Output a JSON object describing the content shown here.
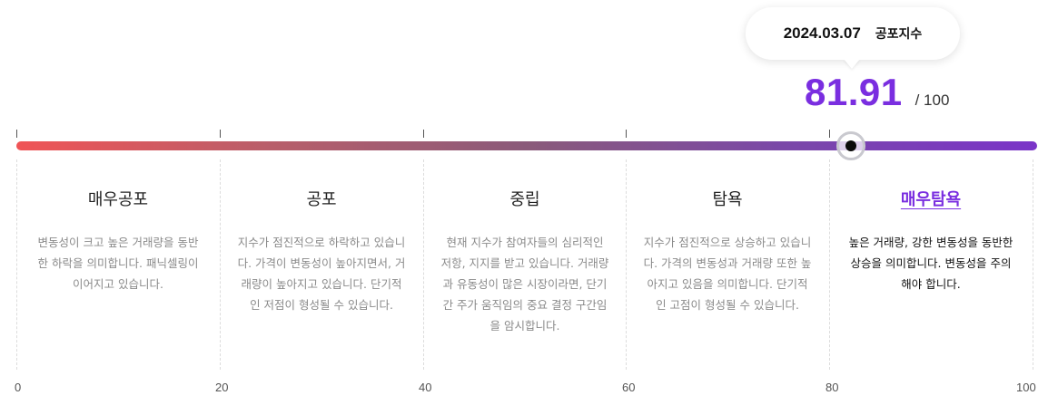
{
  "tooltip": {
    "date": "2024.03.07",
    "label": "공포지수"
  },
  "score": {
    "value": "81.91",
    "max": "/ 100",
    "fraction": 0.8191,
    "color": "#7a2ee0"
  },
  "gradient": {
    "start_color": "#f05456",
    "end_color": "#7a34c8"
  },
  "segments": [
    {
      "title": "매우공포",
      "description": "변동성이 크고 높은 거래량을 동반한 하락을 의미합니다. 패닉셀링이 이어지고 있습니다.",
      "active": false
    },
    {
      "title": "공포",
      "description": "지수가 점진적으로 하락하고 있습니다. 가격이 변동성이 높아지면서, 거래량이 높아지고 있습니다. 단기적인 저점이 형성될 수 있습니다.",
      "active": false
    },
    {
      "title": "중립",
      "description": "현재 지수가 참여자들의 심리적인 저항, 지지를 받고 있습니다. 거래량과 유동성이 많은 시장이라면, 단기간 주가 움직임의 중요 결정 구간임을 암시합니다.",
      "active": false
    },
    {
      "title": "탐욕",
      "description": "지수가 점진적으로 상승하고 있습니다. 가격의 변동성과 거래량 또한 높아지고 있음을 의미합니다. 단기적인 고점이 형성될 수 있습니다.",
      "active": false
    },
    {
      "title": "매우탐욕",
      "description": "높은 거래량, 강한 변동성을 동반한 상승을 의미합니다. 변동성을 주의해야 합니다.",
      "active": true
    }
  ],
  "scale_labels": [
    "0",
    "20",
    "40",
    "60",
    "80",
    "100"
  ]
}
